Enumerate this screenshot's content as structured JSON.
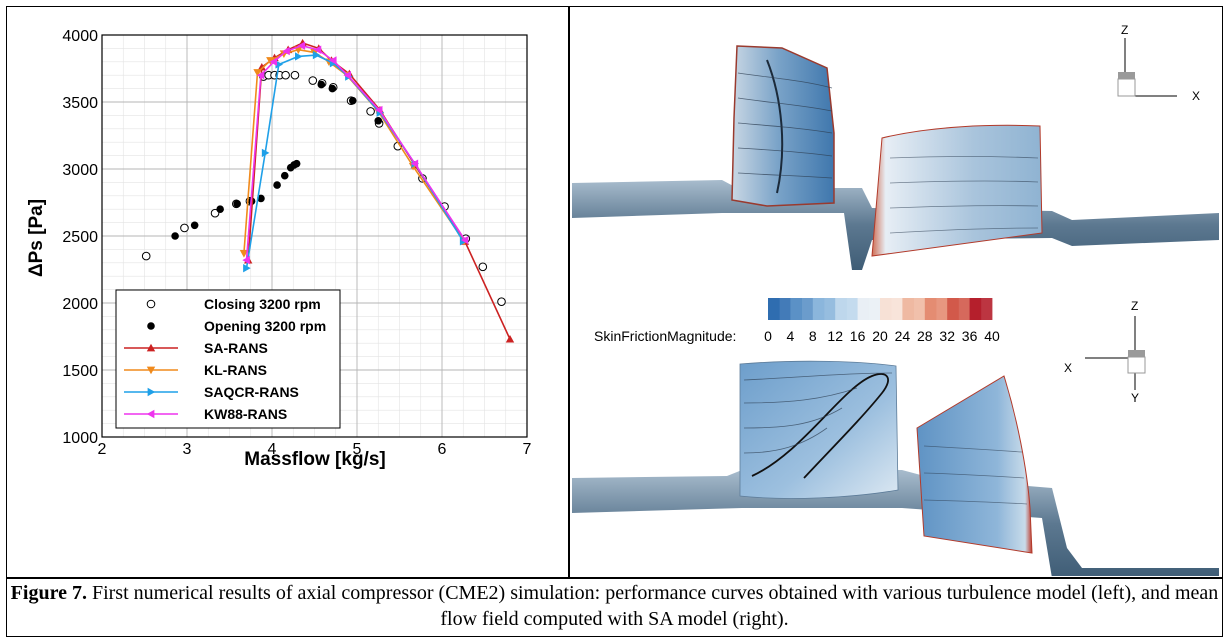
{
  "chart_data": {
    "type": "line",
    "xlabel": "Massflow [kg/s]",
    "ylabel": "ΔPs [Pa]",
    "xlim": [
      2,
      7
    ],
    "ylim": [
      1000,
      4000
    ],
    "xticks": [
      2,
      3,
      4,
      5,
      6,
      7
    ],
    "yticks": [
      1000,
      1500,
      2000,
      2500,
      3000,
      3500,
      4000
    ],
    "grid": true,
    "legend_position": "bottom-left",
    "series": [
      {
        "name": "Closing 3200 rpm",
        "style": "open-circle",
        "color": "#000000",
        "x": [
          2.52,
          2.97,
          3.33,
          3.58,
          3.74,
          3.9,
          3.96,
          4.03,
          4.09,
          4.16,
          4.27,
          4.48,
          4.59,
          4.72,
          4.93,
          5.16,
          5.26,
          5.48,
          5.77,
          6.03,
          6.28,
          6.48,
          6.7
        ],
        "y": [
          2350,
          2560,
          2670,
          2740,
          2760,
          3690,
          3700,
          3700,
          3700,
          3700,
          3700,
          3660,
          3640,
          3610,
          3510,
          3430,
          3340,
          3170,
          2930,
          2720,
          2480,
          2270,
          2010
        ]
      },
      {
        "name": "Opening 3200 rpm",
        "style": "filled-circle",
        "color": "#000000",
        "x": [
          2.86,
          3.09,
          3.39,
          3.59,
          3.76,
          3.87,
          4.06,
          4.15,
          4.22,
          4.26,
          4.29,
          4.58,
          4.71,
          4.95,
          5.25
        ],
        "y": [
          2500,
          2580,
          2700,
          2740,
          2760,
          2780,
          2880,
          2950,
          3010,
          3030,
          3040,
          3630,
          3600,
          3510,
          3360
        ]
      },
      {
        "name": "SA-RANS",
        "style": "line-triangle-up",
        "color": "#cc2222",
        "x": [
          3.72,
          3.88,
          4.03,
          4.19,
          4.36,
          4.55,
          4.7,
          4.91,
          5.27,
          5.68,
          6.27,
          6.8
        ],
        "y": [
          2320,
          3760,
          3830,
          3890,
          3940,
          3900,
          3810,
          3710,
          3440,
          3030,
          2460,
          1730
        ]
      },
      {
        "name": "KL-RANS",
        "style": "line-triangle-down",
        "color": "#f08a1c",
        "x": [
          3.67,
          3.83,
          3.98,
          4.14,
          4.31,
          4.5,
          4.67,
          4.88,
          5.25,
          5.66,
          6.26
        ],
        "y": [
          2370,
          3720,
          3810,
          3860,
          3890,
          3870,
          3800,
          3700,
          3430,
          3020,
          2460
        ]
      },
      {
        "name": "SAQCR-RANS",
        "style": "line-triangle-right",
        "color": "#1fa0e8",
        "x": [
          3.7,
          3.92,
          4.08,
          4.31,
          4.52,
          4.72,
          4.9,
          5.27,
          5.68,
          6.25
        ],
        "y": [
          2260,
          3120,
          3780,
          3840,
          3850,
          3790,
          3690,
          3420,
          3040,
          2460
        ]
      },
      {
        "name": "KW88-RANS",
        "style": "line-triangle-left",
        "color": "#ee33ee",
        "x": [
          3.7,
          3.87,
          4.02,
          4.17,
          4.35,
          4.54,
          4.72,
          4.89,
          5.26,
          5.68,
          6.27
        ],
        "y": [
          2320,
          3700,
          3800,
          3880,
          3920,
          3890,
          3810,
          3700,
          3440,
          3040,
          2470
        ]
      }
    ]
  },
  "flow_figure": {
    "colorbar_label": "SkinFrictionMagnitude:",
    "colorbar_ticks": [
      "0",
      "4",
      "8",
      "12",
      "16",
      "20",
      "24",
      "28",
      "32",
      "36",
      "40"
    ],
    "colorbar_colors": [
      "#2f6db0",
      "#5b91c6",
      "#8bb6dc",
      "#bed7ec",
      "#e9eff5",
      "#f7e1d6",
      "#efb9a2",
      "#e48c72",
      "#d2594a",
      "#b51f2c"
    ],
    "axes_top": {
      "vertical": "Z",
      "horizontal": "X"
    },
    "axes_bottom": {
      "vertical_top": "Z",
      "vertical_bottom": "Y",
      "horizontal": "X"
    }
  },
  "caption": {
    "label": "Figure 7.",
    "text": " First numerical results of axial compressor (CME2) simulation: performance curves obtained with various turbulence model (left), and mean flow field computed with SA model (right)."
  }
}
